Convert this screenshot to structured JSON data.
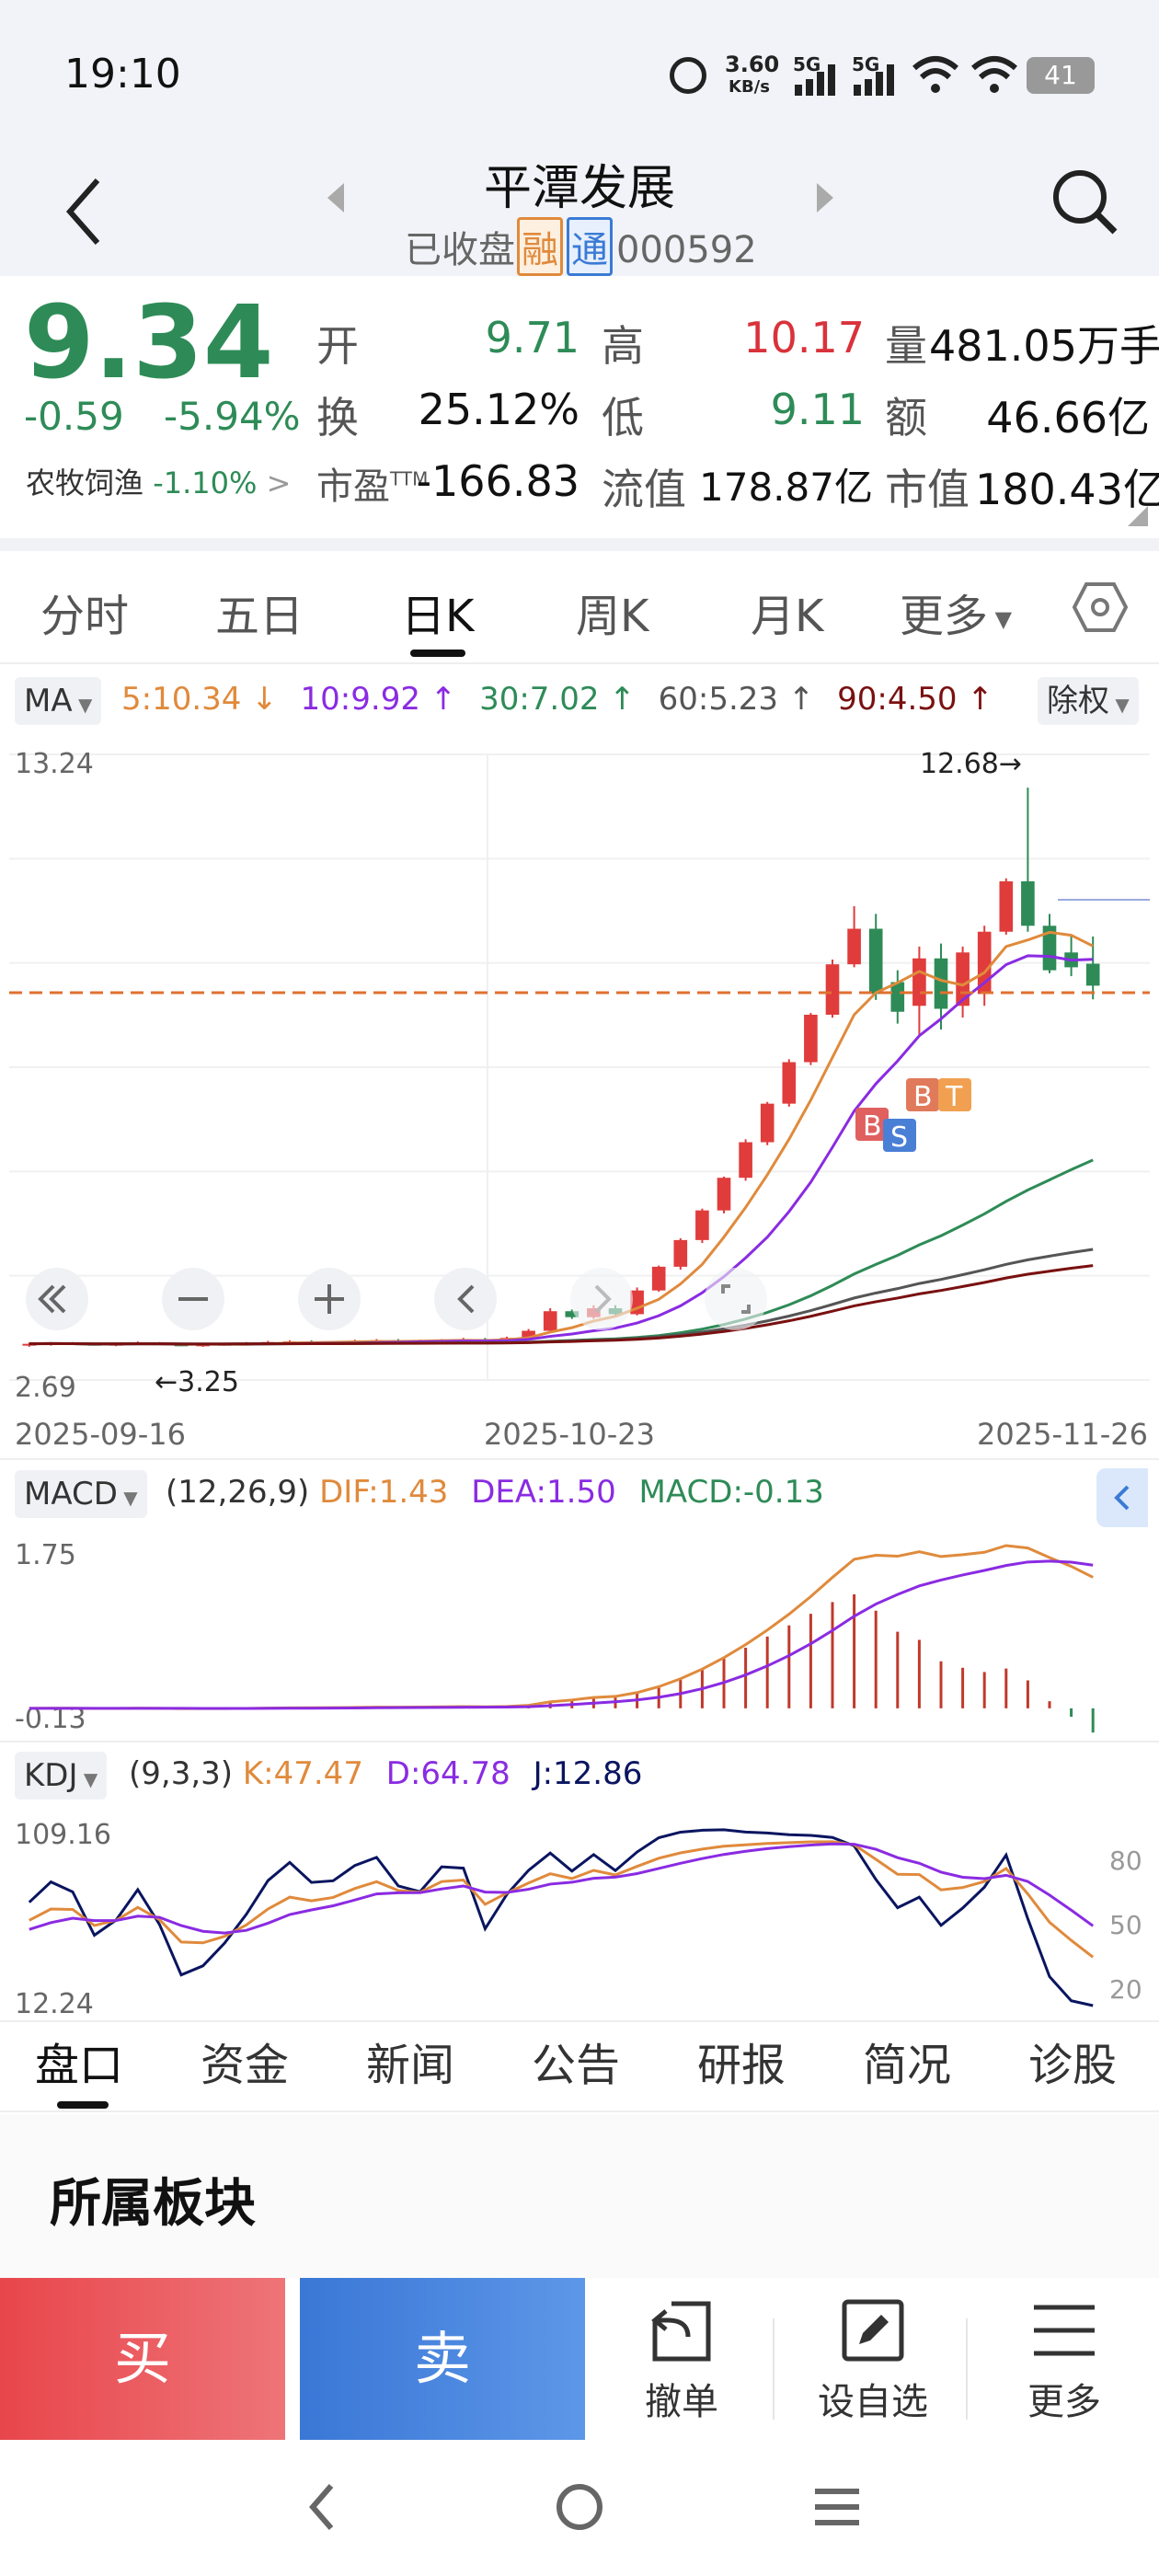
{
  "status": {
    "time": "19:10",
    "net_speed": "3.60",
    "net_unit": "KB/s",
    "sig1": "5G",
    "sig2": "5G",
    "battery": "41"
  },
  "header": {
    "name": "平潭发展",
    "status": "已收盘",
    "tag_rong": "融",
    "tag_tong": "通",
    "code": "000592"
  },
  "quote": {
    "price": "9.34",
    "change": "-0.59",
    "change_pct": "-5.94%",
    "sector_name": "农牧饲渔",
    "sector_pct": "-1.10%",
    "open_label": "开",
    "open": "9.71",
    "high_label": "高",
    "high": "10.17",
    "vol_label": "量",
    "vol": "481.05万手",
    "turnover_label": "换",
    "turnover": "25.12%",
    "low_label": "低",
    "low": "9.11",
    "amount_label": "额",
    "amount": "46.66亿",
    "pe_label": "市盈",
    "pe_sup": "TTM",
    "pe": "-166.83",
    "float_label": "流值",
    "float_cap": "178.87亿",
    "cap_label": "市值",
    "market_cap": "180.43亿"
  },
  "tabs": [
    "分时",
    "五日",
    "日K",
    "周K",
    "月K",
    "更多"
  ],
  "ma": {
    "selector": "MA",
    "ma5": "5:10.34 ↓",
    "ma10": "10:9.92 ↑",
    "ma30": "30:7.02 ↑",
    "ma60": "60:5.23 ↑",
    "ma90": "90:4.50 ↑",
    "adjust": "除权",
    "colors": {
      "ma5": "#e08a3c",
      "ma10": "#8a2be2",
      "ma30": "#2e8b57",
      "ma60": "#555555",
      "ma90": "#7a1010"
    }
  },
  "kchart": {
    "ymax": "13.24",
    "ymin": "2.69",
    "high_mark": "12.68→",
    "low_mark": "←3.25",
    "dates": [
      "2025-09-16",
      "2025-10-23",
      "2025-11-26"
    ],
    "up_color": "#e03c3c",
    "down_color": "#2e8b57"
  },
  "macd": {
    "selector": "MACD",
    "params": "(12,26,9)",
    "dif": "DIF:1.43",
    "dea": "DEA:1.50",
    "macd": "MACD:-0.13",
    "ymax": "1.75",
    "ymin": "-0.13"
  },
  "kdj": {
    "selector": "KDJ",
    "params": "(9,3,3)",
    "k": "K:47.47",
    "d": "D:64.78",
    "j": "J:12.86",
    "ymax": "109.16",
    "ymin": "12.24",
    "levels": [
      "80",
      "50",
      "20"
    ]
  },
  "bottom_tabs": [
    "盘口",
    "资金",
    "新闻",
    "公告",
    "研报",
    "简况",
    "诊股"
  ],
  "section_title": "所属板块",
  "actions": {
    "buy": "买",
    "sell": "卖",
    "cancel": "撤单",
    "watch": "设自选",
    "more": "更多"
  },
  "markers": {
    "b": "B",
    "s": "S",
    "t": "T"
  },
  "chart_data": {
    "type": "candlestick",
    "categories_note": "daily",
    "ohlc": [
      [
        3.3,
        3.32,
        3.25,
        3.3
      ],
      [
        3.3,
        3.33,
        3.27,
        3.31
      ],
      [
        3.31,
        3.33,
        3.28,
        3.3
      ],
      [
        3.3,
        3.32,
        3.27,
        3.28
      ],
      [
        3.28,
        3.31,
        3.26,
        3.3
      ],
      [
        3.3,
        3.34,
        3.28,
        3.32
      ],
      [
        3.32,
        3.33,
        3.28,
        3.29
      ],
      [
        3.29,
        3.31,
        3.26,
        3.27
      ],
      [
        3.27,
        3.3,
        3.25,
        3.29
      ],
      [
        3.29,
        3.32,
        3.27,
        3.3
      ],
      [
        3.3,
        3.33,
        3.28,
        3.31
      ],
      [
        3.31,
        3.35,
        3.29,
        3.33
      ],
      [
        3.33,
        3.36,
        3.31,
        3.34
      ],
      [
        3.34,
        3.36,
        3.3,
        3.32
      ],
      [
        3.32,
        3.35,
        3.3,
        3.33
      ],
      [
        3.33,
        3.37,
        3.31,
        3.35
      ],
      [
        3.35,
        3.38,
        3.32,
        3.36
      ],
      [
        3.36,
        3.38,
        3.33,
        3.34
      ],
      [
        3.34,
        3.37,
        3.32,
        3.35
      ],
      [
        3.35,
        3.38,
        3.33,
        3.37
      ],
      [
        3.37,
        3.4,
        3.35,
        3.38
      ],
      [
        3.38,
        3.4,
        3.32,
        3.34
      ],
      [
        3.34,
        3.42,
        3.33,
        3.4
      ],
      [
        3.4,
        3.55,
        3.38,
        3.52
      ],
      [
        3.52,
        3.9,
        3.5,
        3.85
      ],
      [
        3.85,
        3.88,
        3.72,
        3.75
      ],
      [
        3.75,
        3.95,
        3.72,
        3.9
      ],
      [
        3.9,
        3.95,
        3.78,
        3.8
      ],
      [
        3.8,
        4.25,
        3.78,
        4.2
      ],
      [
        4.2,
        4.62,
        4.18,
        4.6
      ],
      [
        4.6,
        5.08,
        4.55,
        5.05
      ],
      [
        5.05,
        5.58,
        5.0,
        5.55
      ],
      [
        5.55,
        6.12,
        5.5,
        6.1
      ],
      [
        6.1,
        6.75,
        6.05,
        6.7
      ],
      [
        6.7,
        7.38,
        6.65,
        7.35
      ],
      [
        7.35,
        8.1,
        7.3,
        8.05
      ],
      [
        8.05,
        8.88,
        8.0,
        8.85
      ],
      [
        8.85,
        9.78,
        8.8,
        9.7
      ],
      [
        9.7,
        10.68,
        9.65,
        10.3
      ],
      [
        10.3,
        10.55,
        9.1,
        9.2
      ],
      [
        9.4,
        9.6,
        8.7,
        8.9
      ],
      [
        9.0,
        10.0,
        8.5,
        9.8
      ],
      [
        9.8,
        10.05,
        8.6,
        8.95
      ],
      [
        9.0,
        10.0,
        8.8,
        9.9
      ],
      [
        9.2,
        10.35,
        9.0,
        10.25
      ],
      [
        10.25,
        11.15,
        10.2,
        11.1
      ],
      [
        11.1,
        12.68,
        10.25,
        10.35
      ],
      [
        10.35,
        10.55,
        9.55,
        9.6
      ],
      [
        9.9,
        10.2,
        9.5,
        9.65
      ],
      [
        9.71,
        10.17,
        9.11,
        9.34
      ]
    ]
  }
}
